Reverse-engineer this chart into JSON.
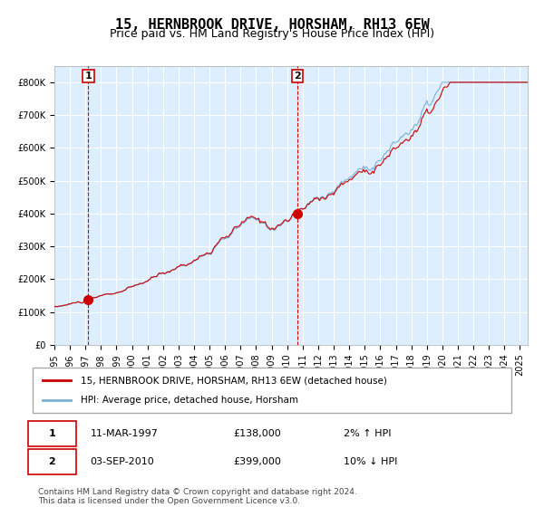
{
  "title": "15, HERNBROOK DRIVE, HORSHAM, RH13 6EW",
  "subtitle": "Price paid vs. HM Land Registry's House Price Index (HPI)",
  "red_label": "15, HERNBROOK DRIVE, HORSHAM, RH13 6EW (detached house)",
  "blue_label": "HPI: Average price, detached house, Horsham",
  "purchase1_date": 1997.19,
  "purchase1_price": 138000,
  "purchase1_label": "1",
  "purchase2_date": 2010.67,
  "purchase2_price": 399000,
  "purchase2_label": "2",
  "table_rows": [
    {
      "num": "1",
      "date": "11-MAR-1997",
      "price": "£138,000",
      "hpi": "2% ↑ HPI"
    },
    {
      "num": "2",
      "date": "03-SEP-2010",
      "price": "£399,000",
      "hpi": "10% ↓ HPI"
    }
  ],
  "footer": "Contains HM Land Registry data © Crown copyright and database right 2024.\nThis data is licensed under the Open Government Licence v3.0.",
  "ylim": [
    0,
    850000
  ],
  "xlim_start": 1995.0,
  "xlim_end": 2025.5,
  "bg_color": "#ddeeff",
  "grid_color": "#ffffff",
  "red_color": "#cc0000",
  "blue_color": "#7ab0d4",
  "legend_box_color": "#cc0000",
  "dashed_line_color": "#cc0000",
  "title_fontsize": 11,
  "subtitle_fontsize": 9,
  "tick_fontsize": 7
}
